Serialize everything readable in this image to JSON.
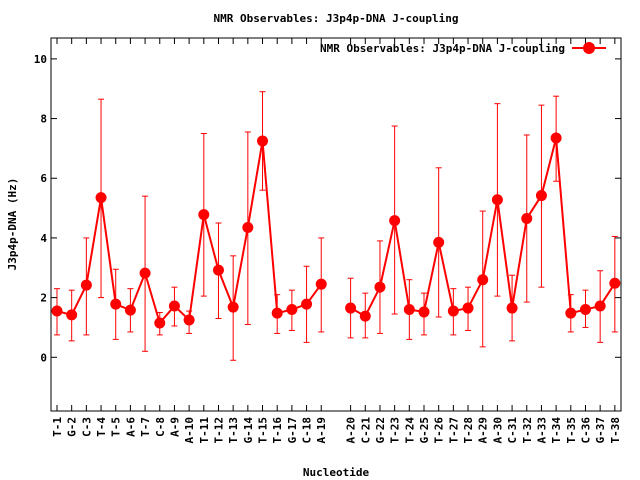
{
  "chart_data": {
    "type": "line",
    "title": "NMR Observables: J3p4p-DNA J-coupling",
    "xlabel": "Nucleotide",
    "ylabel": "J3p4p-DNA (Hz)",
    "ylim": [
      -1.8,
      10.7
    ],
    "yticks": [
      0,
      2,
      4,
      6,
      8,
      10
    ],
    "grid": false,
    "legend_position": "top-right",
    "series": [
      {
        "name": "NMR Observables: J3p4p-DNA J-coupling",
        "color": "#ff0000",
        "segments": [
          {
            "categories": [
              "T-1",
              "G-2",
              "C-3",
              "T-4",
              "T-5",
              "A-6",
              "T-7",
              "C-8",
              "A-9",
              "A-10",
              "T-11",
              "T-12",
              "T-13",
              "G-14",
              "T-15",
              "T-16",
              "G-17",
              "C-18",
              "A-19"
            ],
            "values": [
              1.55,
              1.42,
              2.42,
              5.35,
              1.78,
              1.58,
              2.82,
              1.15,
              1.72,
              1.25,
              4.78,
              2.92,
              1.68,
              4.35,
              7.25,
              1.48,
              1.6,
              1.78,
              2.45
            ],
            "err_low": [
              0.75,
              0.55,
              0.75,
              2.0,
              0.6,
              0.85,
              0.2,
              0.75,
              1.05,
              0.8,
              2.05,
              1.3,
              -0.1,
              1.1,
              5.6,
              0.8,
              0.9,
              0.5,
              0.85
            ],
            "err_high": [
              2.3,
              2.25,
              4.0,
              8.65,
              2.95,
              2.3,
              5.4,
              1.5,
              2.35,
              1.55,
              7.5,
              4.5,
              3.4,
              7.55,
              8.9,
              2.1,
              2.25,
              3.05,
              4.0
            ]
          },
          {
            "categories": [
              "A-20",
              "C-21",
              "G-22",
              "T-23",
              "T-24",
              "G-25",
              "T-26",
              "T-27",
              "T-28",
              "A-29",
              "A-30",
              "C-31",
              "T-32",
              "A-33",
              "T-34",
              "T-35",
              "C-36",
              "G-37",
              "T-38"
            ],
            "values": [
              1.65,
              1.38,
              2.35,
              4.58,
              1.6,
              1.52,
              3.85,
              1.55,
              1.65,
              2.6,
              5.28,
              1.65,
              4.65,
              5.42,
              7.35,
              1.48,
              1.6,
              1.72,
              2.48
            ],
            "err_low": [
              0.65,
              0.65,
              0.8,
              1.45,
              0.6,
              0.75,
              1.35,
              0.75,
              0.9,
              0.35,
              2.05,
              0.55,
              1.85,
              2.35,
              5.9,
              0.85,
              1.0,
              0.5,
              0.85
            ],
            "err_high": [
              2.65,
              2.15,
              3.9,
              7.75,
              2.6,
              2.15,
              6.35,
              2.3,
              2.35,
              4.9,
              8.5,
              2.75,
              7.45,
              8.45,
              8.75,
              2.1,
              2.25,
              2.9,
              4.05
            ]
          }
        ]
      }
    ]
  }
}
